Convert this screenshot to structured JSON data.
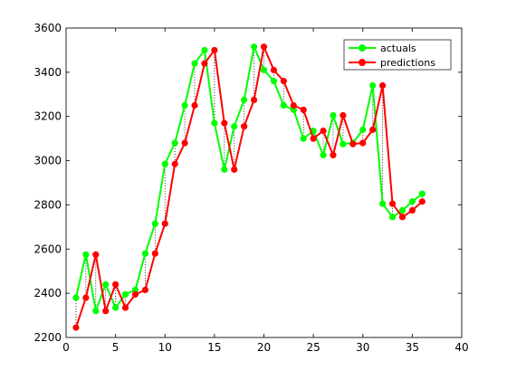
{
  "chart_data": {
    "type": "line",
    "title": "",
    "xlabel": "",
    "ylabel": "",
    "xlim": [
      0,
      40
    ],
    "ylim": [
      2200,
      3600
    ],
    "xticks": [
      0,
      5,
      10,
      15,
      20,
      25,
      30,
      35,
      40
    ],
    "yticks": [
      2200,
      2400,
      2600,
      2800,
      3000,
      3200,
      3400,
      3600
    ],
    "grid": false,
    "legend_position": "top-right",
    "residual_lines": true,
    "x": [
      1,
      2,
      3,
      4,
      5,
      6,
      7,
      8,
      9,
      10,
      11,
      12,
      13,
      14,
      15,
      16,
      17,
      18,
      19,
      20,
      21,
      22,
      23,
      24,
      25,
      26,
      27,
      28,
      29,
      30,
      31,
      32,
      33,
      34,
      35,
      36
    ],
    "series": [
      {
        "name": "actuals",
        "color": "#00ff00",
        "values": [
          2380,
          2575,
          2320,
          2440,
          2335,
          2395,
          2415,
          2580,
          2715,
          2985,
          3080,
          3250,
          3440,
          3500,
          3170,
          2960,
          3155,
          3275,
          3515,
          3410,
          3360,
          3250,
          3230,
          3100,
          3135,
          3025,
          3205,
          3075,
          3080,
          3140,
          3340,
          2805,
          2745,
          2775,
          2815,
          2850
        ]
      },
      {
        "name": "predictions",
        "color": "#ff0000",
        "values": [
          2245,
          2380,
          2575,
          2320,
          2440,
          2335,
          2395,
          2415,
          2580,
          2715,
          2985,
          3080,
          3250,
          3440,
          3500,
          3170,
          2960,
          3155,
          3275,
          3515,
          3410,
          3360,
          3250,
          3230,
          3100,
          3135,
          3025,
          3205,
          3075,
          3080,
          3140,
          3340,
          2805,
          2745,
          2775,
          2815
        ]
      }
    ]
  }
}
